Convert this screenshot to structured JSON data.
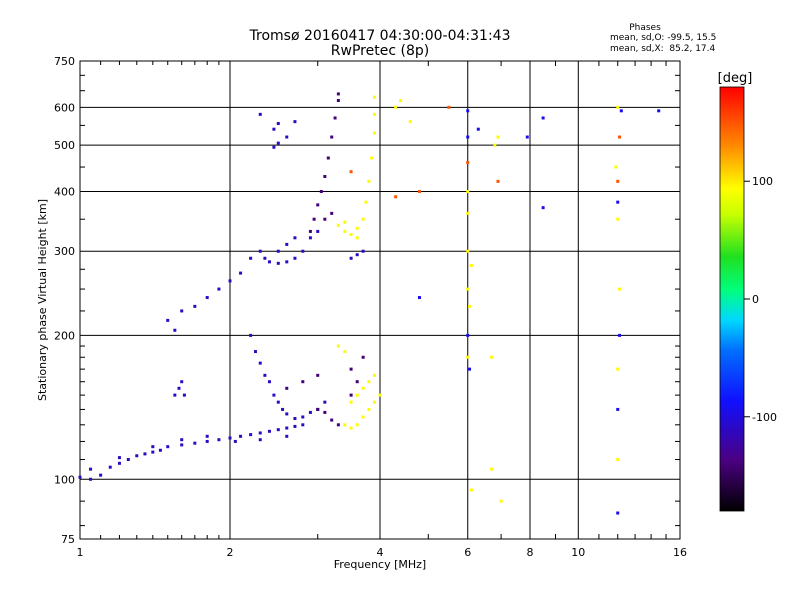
{
  "chart_data": {
    "type": "scatter",
    "title": "Tromsø 20160417 04:30:00-04:31:43",
    "subtitle": "RwPretec (8p)",
    "xlabel": "Frequency [MHz]",
    "ylabel": "Stationary phase Virtual Height [km]",
    "x_scale": "log",
    "y_scale": "log",
    "xlim": [
      1,
      16
    ],
    "ylim": [
      75,
      750
    ],
    "grid": true,
    "x_ticks": [
      1,
      2,
      4,
      6,
      8,
      10,
      16
    ],
    "x_tick_labels": [
      "1",
      "2",
      "4",
      "6",
      "8",
      "10",
      "16"
    ],
    "y_ticks": [
      75,
      100,
      200,
      300,
      400,
      500,
      600,
      750
    ],
    "y_tick_labels": [
      "75",
      "100",
      "200",
      "300",
      "400",
      "500",
      "600",
      "750"
    ],
    "phase_stats": {
      "heading": "Phases",
      "line_o": "mean, sd,O: -99.5, 15.5",
      "line_x": "mean, sd,X:  85.2, 17.4"
    },
    "colorbar": {
      "unit_label": "[deg]",
      "range": [
        -180,
        180
      ],
      "tick_values": [
        100,
        0,
        -100
      ],
      "tick_labels": [
        "100",
        "0",
        "-100"
      ]
    },
    "series": [
      {
        "phase_deg": -110,
        "points": [
          [
            1.0,
            101
          ],
          [
            1.05,
            100
          ],
          [
            1.1,
            102
          ],
          [
            1.15,
            106
          ],
          [
            1.2,
            108
          ],
          [
            1.25,
            110
          ],
          [
            1.3,
            112
          ],
          [
            1.35,
            113
          ],
          [
            1.4,
            114
          ],
          [
            1.45,
            115
          ],
          [
            1.5,
            117
          ],
          [
            1.6,
            118
          ],
          [
            1.7,
            119
          ],
          [
            1.8,
            120
          ],
          [
            1.9,
            121
          ],
          [
            2.0,
            122
          ],
          [
            2.1,
            123
          ],
          [
            2.2,
            124
          ],
          [
            2.3,
            125
          ],
          [
            2.4,
            126
          ],
          [
            2.5,
            127
          ],
          [
            2.6,
            128
          ],
          [
            2.7,
            129
          ],
          [
            2.8,
            130
          ],
          [
            1.05,
            105
          ],
          [
            1.2,
            111
          ],
          [
            1.4,
            117
          ],
          [
            1.6,
            121
          ],
          [
            1.8,
            123
          ],
          [
            2.05,
            120
          ],
          [
            2.3,
            121
          ],
          [
            2.6,
            123
          ],
          [
            1.55,
            150
          ],
          [
            1.58,
            155
          ],
          [
            1.6,
            160
          ],
          [
            1.62,
            150
          ],
          [
            1.5,
            215
          ],
          [
            1.55,
            205
          ],
          [
            1.6,
            225
          ],
          [
            1.7,
            230
          ],
          [
            1.8,
            240
          ],
          [
            1.9,
            250
          ],
          [
            2.0,
            260
          ],
          [
            2.1,
            270
          ],
          [
            2.2,
            290
          ],
          [
            2.3,
            300
          ],
          [
            2.35,
            290
          ],
          [
            2.4,
            285
          ],
          [
            2.5,
            283
          ],
          [
            2.6,
            285
          ],
          [
            2.7,
            290
          ],
          [
            2.8,
            300
          ],
          [
            2.5,
            300
          ],
          [
            2.6,
            310
          ],
          [
            2.7,
            320
          ],
          [
            2.9,
            320
          ],
          [
            3.0,
            330
          ],
          [
            2.2,
            200
          ],
          [
            2.25,
            185
          ],
          [
            2.3,
            175
          ],
          [
            2.35,
            165
          ],
          [
            2.4,
            160
          ],
          [
            2.45,
            150
          ],
          [
            2.5,
            145
          ],
          [
            2.55,
            140
          ],
          [
            2.6,
            137
          ],
          [
            2.7,
            134
          ],
          [
            2.8,
            135
          ],
          [
            2.9,
            138
          ],
          [
            3.0,
            140
          ],
          [
            3.1,
            145
          ],
          [
            2.45,
            495
          ],
          [
            2.5,
            505
          ],
          [
            2.5,
            555
          ],
          [
            2.45,
            540
          ],
          [
            2.6,
            520
          ],
          [
            2.7,
            560
          ],
          [
            2.3,
            580
          ],
          [
            3.5,
            290
          ],
          [
            3.6,
            295
          ],
          [
            3.7,
            300
          ]
        ]
      },
      {
        "phase_deg": -140,
        "points": [
          [
            2.9,
            330
          ],
          [
            2.95,
            350
          ],
          [
            3.0,
            375
          ],
          [
            3.05,
            400
          ],
          [
            3.1,
            430
          ],
          [
            3.15,
            470
          ],
          [
            3.2,
            520
          ],
          [
            3.25,
            570
          ],
          [
            3.3,
            620
          ],
          [
            3.3,
            640
          ],
          [
            3.1,
            350
          ],
          [
            3.2,
            360
          ],
          [
            3.0,
            140
          ],
          [
            3.1,
            138
          ],
          [
            3.2,
            133
          ],
          [
            3.3,
            130
          ],
          [
            3.5,
            150
          ],
          [
            3.6,
            160
          ],
          [
            3.7,
            180
          ],
          [
            3.5,
            170
          ],
          [
            2.6,
            155
          ],
          [
            2.8,
            160
          ],
          [
            3.0,
            165
          ]
        ]
      },
      {
        "phase_deg": 95,
        "points": [
          [
            3.3,
            340
          ],
          [
            3.4,
            330
          ],
          [
            3.5,
            325
          ],
          [
            3.6,
            335
          ],
          [
            3.7,
            350
          ],
          [
            3.75,
            380
          ],
          [
            3.8,
            420
          ],
          [
            3.85,
            470
          ],
          [
            3.9,
            530
          ],
          [
            3.9,
            580
          ],
          [
            3.9,
            630
          ],
          [
            3.6,
            320
          ],
          [
            3.4,
            345
          ],
          [
            3.4,
            130
          ],
          [
            3.5,
            128
          ],
          [
            3.6,
            130
          ],
          [
            3.7,
            135
          ],
          [
            3.8,
            140
          ],
          [
            3.9,
            145
          ],
          [
            4.0,
            150
          ],
          [
            3.8,
            160
          ],
          [
            3.9,
            165
          ],
          [
            3.6,
            150
          ],
          [
            3.7,
            155
          ],
          [
            3.3,
            190
          ],
          [
            3.4,
            185
          ],
          [
            3.5,
            145
          ],
          [
            6.0,
            400
          ],
          [
            6.0,
            360
          ],
          [
            6.0,
            300
          ],
          [
            6.0,
            250
          ],
          [
            6.1,
            280
          ],
          [
            6.0,
            180
          ],
          [
            6.05,
            230
          ],
          [
            6.7,
            180
          ],
          [
            6.8,
            500
          ],
          [
            6.9,
            520
          ],
          [
            12.0,
            600
          ],
          [
            11.9,
            450
          ],
          [
            12.0,
            350
          ],
          [
            12.1,
            250
          ],
          [
            12.0,
            170
          ],
          [
            12.0,
            110
          ],
          [
            4.3,
            600
          ],
          [
            4.4,
            620
          ],
          [
            4.6,
            560
          ],
          [
            6.1,
            95
          ],
          [
            7.0,
            90
          ],
          [
            6.7,
            105
          ]
        ]
      },
      {
        "phase_deg": 150,
        "points": [
          [
            3.5,
            440
          ],
          [
            4.3,
            390
          ],
          [
            4.8,
            400
          ],
          [
            6.9,
            420
          ],
          [
            5.5,
            600
          ],
          [
            12.0,
            420
          ],
          [
            6.0,
            460
          ],
          [
            12.1,
            520
          ]
        ]
      },
      {
        "phase_deg": -95,
        "points": [
          [
            6.0,
            590
          ],
          [
            6.0,
            520
          ],
          [
            6.0,
            200
          ],
          [
            6.05,
            170
          ],
          [
            8.5,
            570
          ],
          [
            8.5,
            370
          ],
          [
            12.2,
            590
          ],
          [
            14.5,
            590
          ],
          [
            12.0,
            380
          ],
          [
            12.1,
            200
          ],
          [
            12.0,
            140
          ],
          [
            12.0,
            85
          ],
          [
            7.9,
            520
          ],
          [
            6.3,
            540
          ],
          [
            4.8,
            240
          ]
        ]
      }
    ]
  }
}
